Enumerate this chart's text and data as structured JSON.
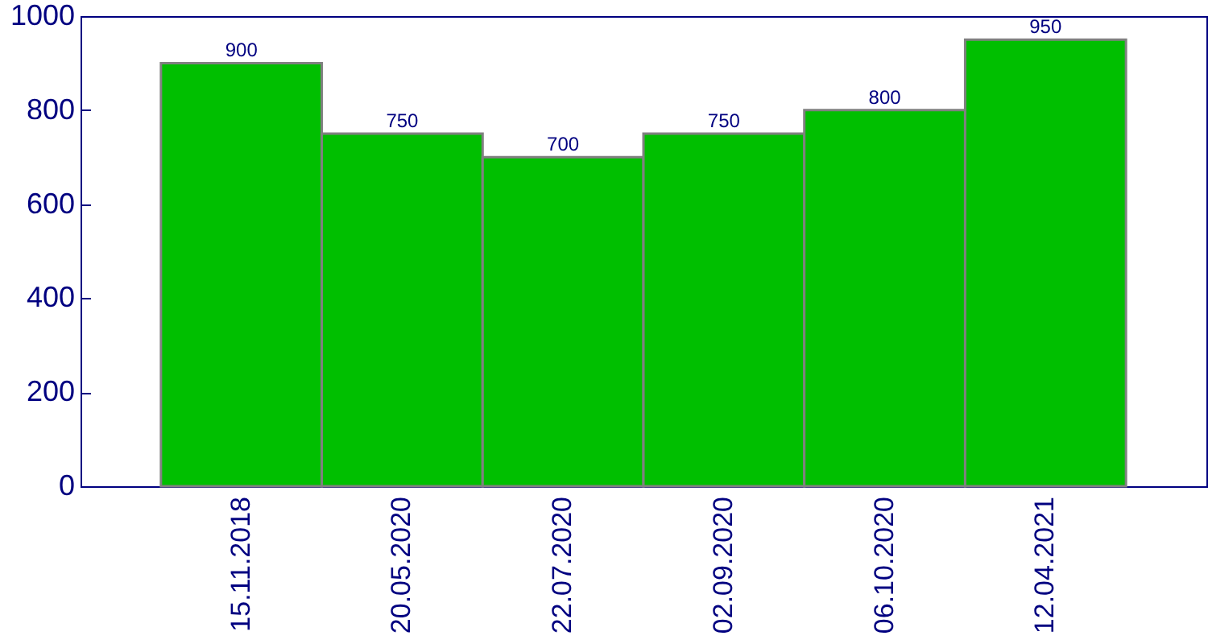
{
  "chart_data": {
    "type": "bar",
    "categories": [
      "15.11.2018",
      "20.05.2020",
      "22.07.2020",
      "02.09.2020",
      "06.10.2020",
      "12.04.2021"
    ],
    "values": [
      900,
      750,
      700,
      750,
      800,
      950
    ],
    "color": "#00bf00",
    "ylim": [
      0,
      1000
    ],
    "yticks": [
      0,
      200,
      400,
      600,
      800,
      1000
    ],
    "data_labels": true,
    "grid": false
  }
}
